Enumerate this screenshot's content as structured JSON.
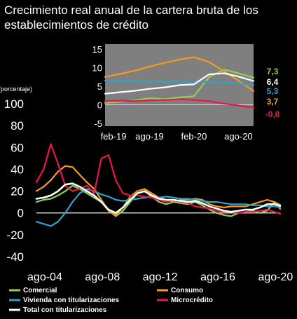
{
  "chart_data": [
    {
      "type": "line",
      "title": "Crecimiento real anual de la cartera bruta de los establecimientos de crédito",
      "ylabel": "(porcentaje)",
      "xlabel": "",
      "ylim": [
        -40,
        100
      ],
      "yticks": [
        "100",
        "80",
        "60",
        "40",
        "20",
        "0",
        "-20",
        "-40"
      ],
      "xticks": [
        "ago-04",
        "ago-08",
        "ago-12",
        "ago-16",
        "ago-20"
      ],
      "legend": "bottom",
      "grid": false,
      "series": [
        {
          "name": "Comercial",
          "color": "#92d050",
          "x": [
            2004.0,
            2004.5,
            2005.0,
            2005.5,
            2006.0,
            2006.5,
            2007.0,
            2007.5,
            2008.0,
            2008.5,
            2009.0,
            2009.5,
            2010.0,
            2010.5,
            2011.0,
            2011.5,
            2012.0,
            2012.5,
            2013.0,
            2013.5,
            2014.0,
            2014.5,
            2015.0,
            2015.5,
            2016.0,
            2016.5,
            2017.0,
            2017.5,
            2018.0,
            2018.5,
            2019.0,
            2019.5,
            2020.0,
            2020.5,
            2020.9
          ],
          "y": [
            10,
            12,
            13,
            16,
            20,
            25,
            22,
            18,
            14,
            10,
            2,
            -3,
            2,
            10,
            18,
            20,
            15,
            10,
            8,
            10,
            9,
            8,
            10,
            7,
            3,
            0,
            -2,
            -3,
            0,
            1,
            2,
            0,
            2,
            10,
            7.3
          ]
        },
        {
          "name": "Consumo",
          "color": "#f59a1f",
          "x": [
            2004.0,
            2004.5,
            2005.0,
            2005.5,
            2006.0,
            2006.5,
            2007.0,
            2007.5,
            2008.0,
            2008.5,
            2009.0,
            2009.5,
            2010.0,
            2010.5,
            2011.0,
            2011.5,
            2012.0,
            2012.5,
            2013.0,
            2013.5,
            2014.0,
            2014.5,
            2015.0,
            2015.5,
            2016.0,
            2016.5,
            2017.0,
            2017.5,
            2018.0,
            2018.5,
            2019.0,
            2019.5,
            2020.0,
            2020.5,
            2020.9
          ],
          "y": [
            20,
            24,
            30,
            38,
            43,
            42,
            35,
            28,
            22,
            12,
            2,
            -2,
            5,
            15,
            20,
            22,
            18,
            14,
            12,
            10,
            12,
            12,
            13,
            12,
            8,
            6,
            5,
            6,
            6,
            6,
            8,
            10,
            12,
            10,
            3.7
          ]
        },
        {
          "name": "Vivienda con titularizaciones",
          "color": "#2ea3c8",
          "x": [
            2004.0,
            2004.5,
            2005.0,
            2005.5,
            2006.0,
            2006.5,
            2007.0,
            2007.5,
            2008.0,
            2008.5,
            2009.0,
            2009.5,
            2010.0,
            2010.5,
            2011.0,
            2011.5,
            2012.0,
            2012.5,
            2013.0,
            2013.5,
            2014.0,
            2014.5,
            2015.0,
            2015.5,
            2016.0,
            2016.5,
            2017.0,
            2017.5,
            2018.0,
            2018.5,
            2019.0,
            2019.5,
            2020.0,
            2020.5,
            2020.9
          ],
          "y": [
            -8,
            -10,
            -12,
            -8,
            0,
            10,
            18,
            22,
            20,
            17,
            15,
            12,
            11,
            12,
            13,
            14,
            15,
            14,
            15,
            14,
            13,
            13,
            12,
            11,
            10,
            10,
            9,
            8,
            8,
            8,
            7,
            7,
            6,
            6,
            5.3
          ]
        },
        {
          "name": "Microcrédito",
          "color": "#e8174b",
          "x": [
            2004.0,
            2004.5,
            2005.0,
            2005.5,
            2006.0,
            2006.5,
            2007.0,
            2007.5,
            2008.0,
            2008.5,
            2009.0,
            2009.5,
            2010.0,
            2010.5,
            2011.0,
            2011.5,
            2012.0,
            2012.5,
            2013.0,
            2013.5,
            2014.0,
            2014.5,
            2015.0,
            2015.5,
            2016.0,
            2016.5,
            2017.0,
            2017.5,
            2018.0,
            2018.5,
            2019.0,
            2019.5,
            2020.0,
            2020.5,
            2020.9
          ],
          "y": [
            28,
            40,
            63,
            45,
            25,
            20,
            22,
            25,
            18,
            50,
            53,
            30,
            18,
            16,
            16,
            15,
            14,
            12,
            10,
            12,
            10,
            9,
            6,
            5,
            4,
            2,
            1,
            1,
            0,
            1,
            1,
            2,
            3,
            1,
            -0.8
          ]
        },
        {
          "name": "Total con titularizaciones",
          "color": "#ffffff",
          "x": [
            2004.0,
            2004.5,
            2005.0,
            2005.5,
            2006.0,
            2006.5,
            2007.0,
            2007.5,
            2008.0,
            2008.5,
            2009.0,
            2009.5,
            2010.0,
            2010.5,
            2011.0,
            2011.5,
            2012.0,
            2012.5,
            2013.0,
            2013.5,
            2014.0,
            2014.5,
            2015.0,
            2015.5,
            2016.0,
            2016.5,
            2017.0,
            2017.5,
            2018.0,
            2018.5,
            2019.0,
            2019.5,
            2020.0,
            2020.5,
            2020.9
          ],
          "y": [
            13,
            14,
            16,
            20,
            26,
            27,
            24,
            20,
            16,
            10,
            3,
            0,
            5,
            12,
            18,
            20,
            16,
            13,
            12,
            12,
            11,
            10,
            11,
            9,
            6,
            4,
            2,
            1,
            2,
            3,
            3,
            5,
            8,
            8,
            6.4
          ]
        }
      ]
    },
    {
      "type": "line",
      "title": "",
      "xlabel": "",
      "ylabel": "",
      "ylim": [
        -5,
        15
      ],
      "yticks": [
        "15",
        "10",
        "5",
        "0",
        "-5"
      ],
      "xticks": [
        "feb-19",
        "ago-19",
        "feb-20",
        "ago-20"
      ],
      "grid": false,
      "end_labels": [
        "7,3",
        "6,4",
        "5,3",
        "3,7",
        "-0,8"
      ],
      "series": [
        {
          "name": "Comercial",
          "color": "#92d050",
          "x": [
            2019.08,
            2019.25,
            2019.42,
            2019.58,
            2019.75,
            2019.92,
            2020.08,
            2020.25,
            2020.42,
            2020.58,
            2020.75
          ],
          "y": [
            0.5,
            0.8,
            1.2,
            1.8,
            1.5,
            2.0,
            2.3,
            7.5,
            9.5,
            8.5,
            7.3
          ]
        },
        {
          "name": "Consumo",
          "color": "#f59a1f",
          "x": [
            2019.08,
            2019.25,
            2019.42,
            2019.58,
            2019.75,
            2019.92,
            2020.08,
            2020.25,
            2020.42,
            2020.58,
            2020.75
          ],
          "y": [
            7.5,
            8.3,
            9.2,
            10.3,
            11.3,
            12.2,
            12.8,
            11.5,
            9.0,
            6.5,
            3.7
          ]
        },
        {
          "name": "Vivienda con titularizaciones",
          "color": "#2ea3c8",
          "x": [
            2019.08,
            2019.25,
            2019.42,
            2019.58,
            2019.75,
            2019.92,
            2020.08,
            2020.25,
            2020.42,
            2020.58,
            2020.75
          ],
          "y": [
            6.5,
            6.4,
            6.4,
            6.3,
            6.2,
            6.3,
            6.3,
            6.1,
            6.0,
            5.8,
            5.3
          ]
        },
        {
          "name": "Microcrédito",
          "color": "#e8174b",
          "x": [
            2019.08,
            2019.25,
            2019.42,
            2019.58,
            2019.75,
            2019.92,
            2020.08,
            2020.25,
            2020.42,
            2020.58,
            2020.75
          ],
          "y": [
            1.0,
            1.1,
            1.0,
            1.2,
            1.3,
            1.5,
            1.3,
            1.0,
            0.3,
            -0.2,
            -0.8
          ]
        },
        {
          "name": "Total con titularizaciones",
          "color": "#ffffff",
          "x": [
            2019.08,
            2019.25,
            2019.42,
            2019.58,
            2019.75,
            2019.92,
            2020.08,
            2020.25,
            2020.42,
            2020.58,
            2020.75
          ],
          "y": [
            3.0,
            3.4,
            3.8,
            4.3,
            4.7,
            5.3,
            5.5,
            8.2,
            8.5,
            7.6,
            6.4
          ]
        }
      ]
    }
  ]
}
